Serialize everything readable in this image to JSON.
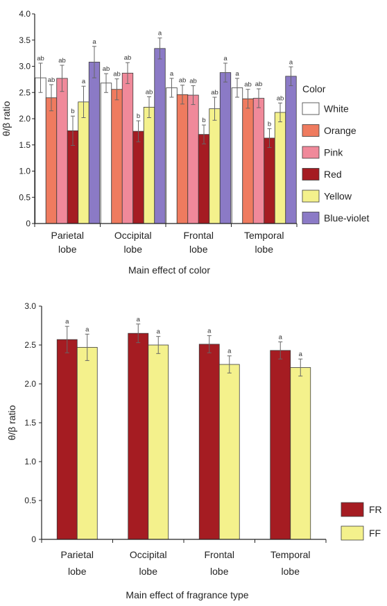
{
  "chart_data": [
    {
      "type": "bar",
      "categories": [
        "Parietal\nlobe",
        "Occipital\nlobe",
        "Frontal\nlobe",
        "Temporal\nlobe"
      ],
      "ylabel": "θ/β ratio",
      "xlabel": "Main effect of color",
      "ylim": [
        0,
        4.0
      ],
      "yticks": [
        "0",
        "0.5",
        "1.0",
        "1.5",
        "2.0",
        "2.5",
        "3.0",
        "3.5",
        "4.0"
      ],
      "legend_title": "Color",
      "legend_position": "right",
      "series": [
        {
          "name": "White",
          "color": "#ffffff",
          "values": [
            2.78,
            2.68,
            2.59,
            2.59
          ],
          "errors": [
            0.28,
            0.18,
            0.18,
            0.18
          ],
          "labels": [
            "ab",
            "ab",
            "a",
            "a"
          ]
        },
        {
          "name": "Orange",
          "color": "#ef7b5f",
          "values": [
            2.4,
            2.56,
            2.46,
            2.38
          ],
          "errors": [
            0.25,
            0.2,
            0.18,
            0.18
          ],
          "labels": [
            "ab",
            "ab",
            "ab",
            "ab"
          ]
        },
        {
          "name": "Pink",
          "color": "#f0899a",
          "values": [
            2.77,
            2.87,
            2.45,
            2.39
          ],
          "errors": [
            0.25,
            0.2,
            0.18,
            0.18
          ],
          "labels": [
            "ab",
            "ab",
            "ab",
            "ab"
          ]
        },
        {
          "name": "Red",
          "color": "#a51c22",
          "values": [
            1.77,
            1.76,
            1.7,
            1.63
          ],
          "errors": [
            0.28,
            0.2,
            0.18,
            0.18
          ],
          "labels": [
            "b",
            "b",
            "b",
            "b"
          ]
        },
        {
          "name": "Yellow",
          "color": "#f4f18c",
          "values": [
            2.32,
            2.22,
            2.19,
            2.12
          ],
          "errors": [
            0.3,
            0.2,
            0.22,
            0.18
          ],
          "labels": [
            "a",
            "ab",
            "ab",
            "ab"
          ]
        },
        {
          "name": "Blue-violet",
          "color": "#8b7ac6",
          "values": [
            3.08,
            3.34,
            2.88,
            2.81
          ],
          "errors": [
            0.3,
            0.2,
            0.18,
            0.18
          ],
          "labels": [
            "a",
            "a",
            "a",
            "a"
          ]
        }
      ]
    },
    {
      "type": "bar",
      "categories": [
        "Parietal\nlobe",
        "Occipital\nlobe",
        "Frontal\nlobe",
        "Temporal\nlobe"
      ],
      "ylabel": "θ/β ratio",
      "xlabel": "Main effect of fragrance type",
      "ylim": [
        0,
        3.0
      ],
      "yticks": [
        "0",
        "0.5",
        "1.0",
        "1.5",
        "2.0",
        "2.5",
        "3.0"
      ],
      "legend_position": "bottom-right",
      "series": [
        {
          "name": "FR",
          "color": "#a51c22",
          "values": [
            2.57,
            2.65,
            2.51,
            2.43
          ],
          "errors": [
            0.17,
            0.12,
            0.11,
            0.11
          ],
          "labels": [
            "a",
            "a",
            "a",
            "a"
          ]
        },
        {
          "name": "FF",
          "color": "#f4f18c",
          "values": [
            2.47,
            2.5,
            2.25,
            2.21
          ],
          "errors": [
            0.17,
            0.11,
            0.11,
            0.11
          ],
          "labels": [
            "a",
            "a",
            "a",
            "a"
          ]
        }
      ]
    }
  ]
}
